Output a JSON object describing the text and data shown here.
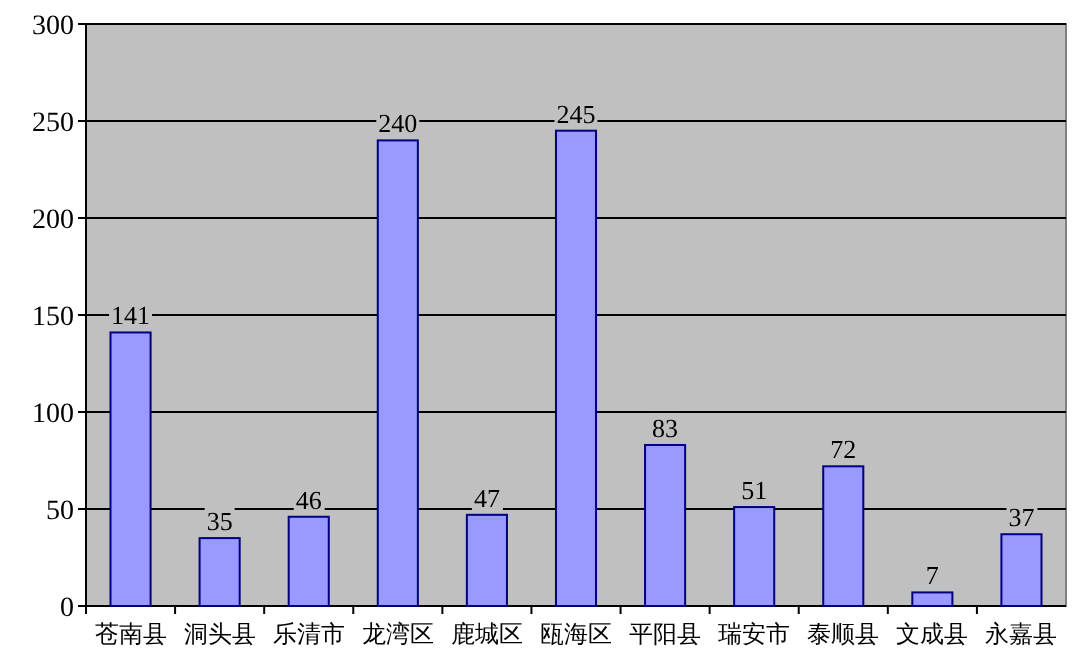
{
  "chart_data": {
    "type": "bar",
    "categories": [
      "苍南县",
      "洞头县",
      "乐清市",
      "龙湾区",
      "鹿城区",
      "瓯海区",
      "平阳县",
      "瑞安市",
      "泰顺县",
      "文成县",
      "永嘉县"
    ],
    "values": [
      141,
      35,
      46,
      240,
      47,
      245,
      83,
      51,
      72,
      7,
      37
    ],
    "color": "#9999ff",
    "ylim": [
      0,
      300
    ],
    "yticks": [
      0,
      50,
      100,
      150,
      200,
      250,
      300
    ],
    "grid": "y",
    "data_labels": true
  }
}
